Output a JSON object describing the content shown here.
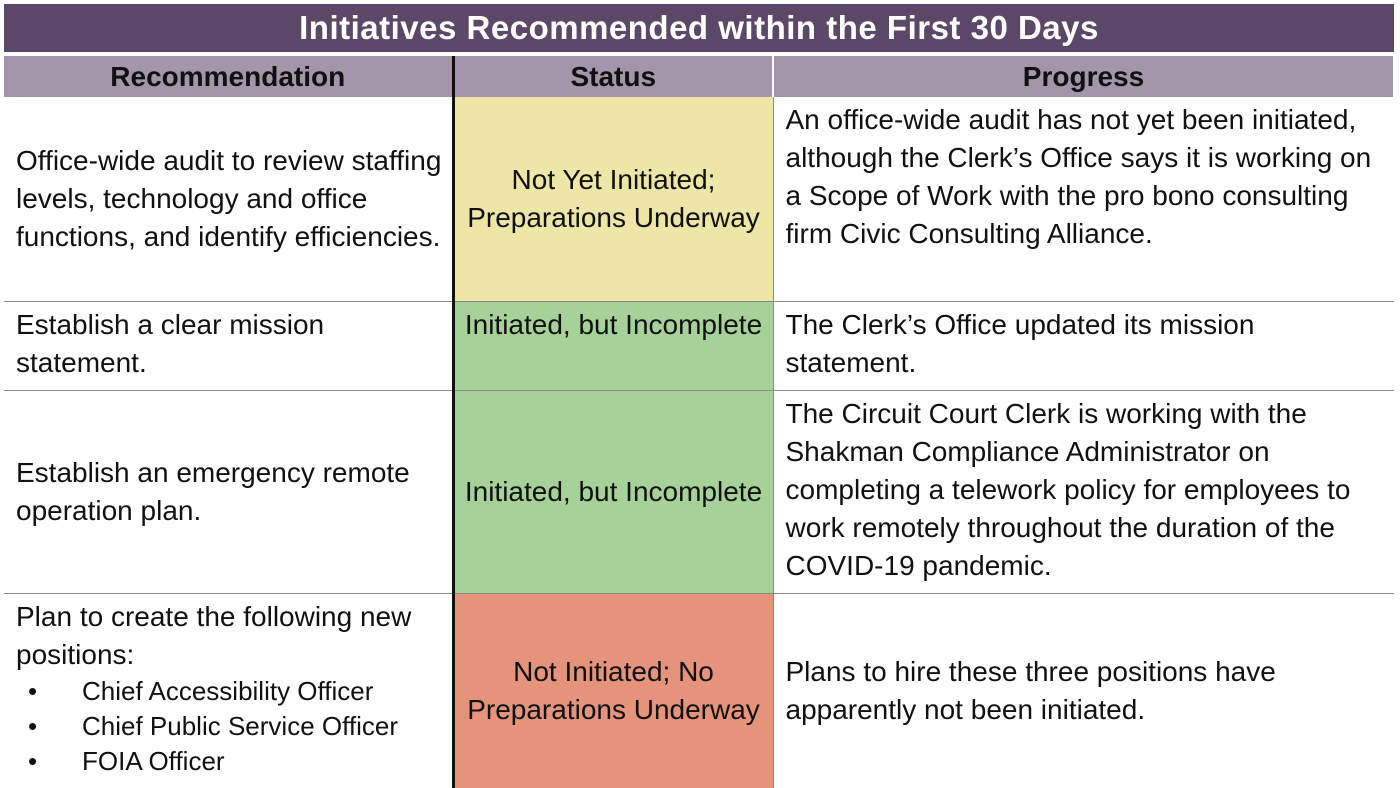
{
  "title": "Initiatives Recommended within the First 30 Days",
  "headers": {
    "recommendation": "Recommendation",
    "status": "Status",
    "progress": "Progress"
  },
  "rows": [
    {
      "recommendation": "Office-wide audit to review staffing levels, technology and office functions, and identify efficiencies.",
      "status": "Not Yet Initiated; Preparations Underway",
      "status_color": "#ede6a6",
      "progress": "An office-wide audit has not yet been initiated, although the Clerk’s Office says it is working on a Scope of Work with the pro bono consulting firm Civic Consulting Alliance."
    },
    {
      "recommendation": "Establish a clear mission statement.",
      "status": "Initiated, but Incomplete",
      "status_color": "#a6d29a",
      "progress": "The Clerk’s Office updated its mission statement."
    },
    {
      "recommendation": "Establish an emergency remote operation plan.",
      "status": "Initiated, but Incomplete",
      "status_color": "#a6d29a",
      "progress": "The Circuit Court Clerk is working with the Shakman Compliance Administrator on completing a telework policy for employees to work remotely throughout the duration of the COVID-19 pandemic."
    },
    {
      "recommendation": "Plan to create the following new positions:",
      "bullets": [
        "Chief Accessibility Officer",
        "Chief Public Service Officer",
        "FOIA Officer"
      ],
      "status": "Not Initiated; No Preparations Underway",
      "status_color": "#e5937a",
      "progress": "Plans to hire these three positions have apparently not been initiated."
    }
  ],
  "colors": {
    "title_bg": "#5b4767",
    "header_bg": "#a396ab"
  }
}
